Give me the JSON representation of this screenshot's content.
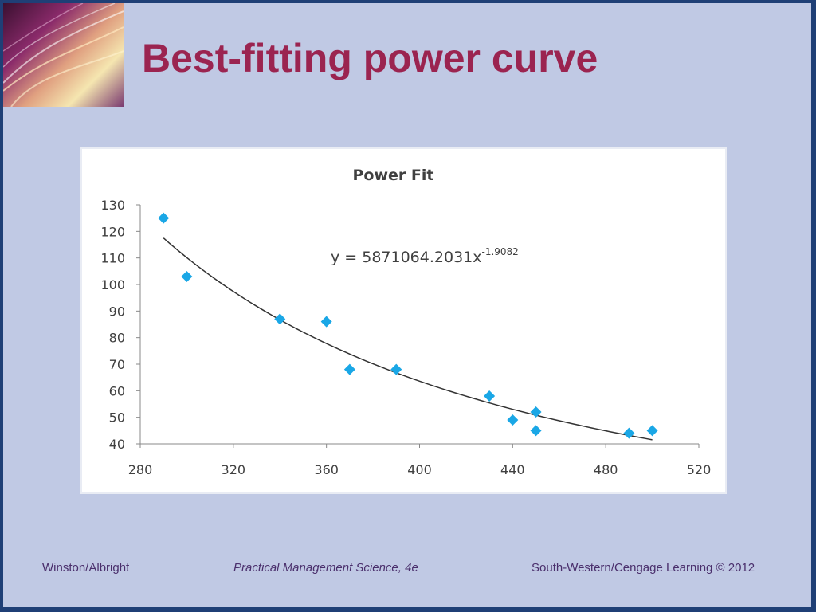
{
  "slide": {
    "title": "Best-fitting power curve",
    "footer": {
      "left": "Winston/Albright",
      "center": "Practical Management Science, 4e",
      "right": "South-Western/Cengage Learning © 2012"
    }
  },
  "colors": {
    "frame": "#1f3f76",
    "slide_background": "#c0c9e4",
    "title": "#9b2450",
    "footer_text": "#4a2f6c",
    "marker": "#1aa7e6",
    "trendline": "#333333"
  },
  "chart_data": {
    "type": "scatter",
    "title": "Power Fit",
    "xlabel": "",
    "ylabel": "",
    "xlim": [
      280,
      520
    ],
    "ylim": [
      40,
      130
    ],
    "x_ticks": [
      280,
      320,
      360,
      400,
      440,
      480,
      520
    ],
    "y_ticks": [
      40,
      50,
      60,
      70,
      80,
      90,
      100,
      110,
      120,
      130
    ],
    "grid": false,
    "legend": "none",
    "marker": "diamond",
    "points": [
      {
        "x": 290,
        "y": 125
      },
      {
        "x": 300,
        "y": 103
      },
      {
        "x": 340,
        "y": 87
      },
      {
        "x": 360,
        "y": 86
      },
      {
        "x": 370,
        "y": 68
      },
      {
        "x": 390,
        "y": 68
      },
      {
        "x": 430,
        "y": 58
      },
      {
        "x": 440,
        "y": 49
      },
      {
        "x": 450,
        "y": 52
      },
      {
        "x": 450,
        "y": 45
      },
      {
        "x": 490,
        "y": 44
      },
      {
        "x": 500,
        "y": 45
      }
    ],
    "trendline": {
      "type": "power",
      "coefficient": 5871064.2031,
      "exponent": -1.9082,
      "x_range": [
        290,
        500
      ]
    },
    "annotation": {
      "base": "y = 5871064.2031x",
      "superscript": "-1.9082"
    }
  }
}
